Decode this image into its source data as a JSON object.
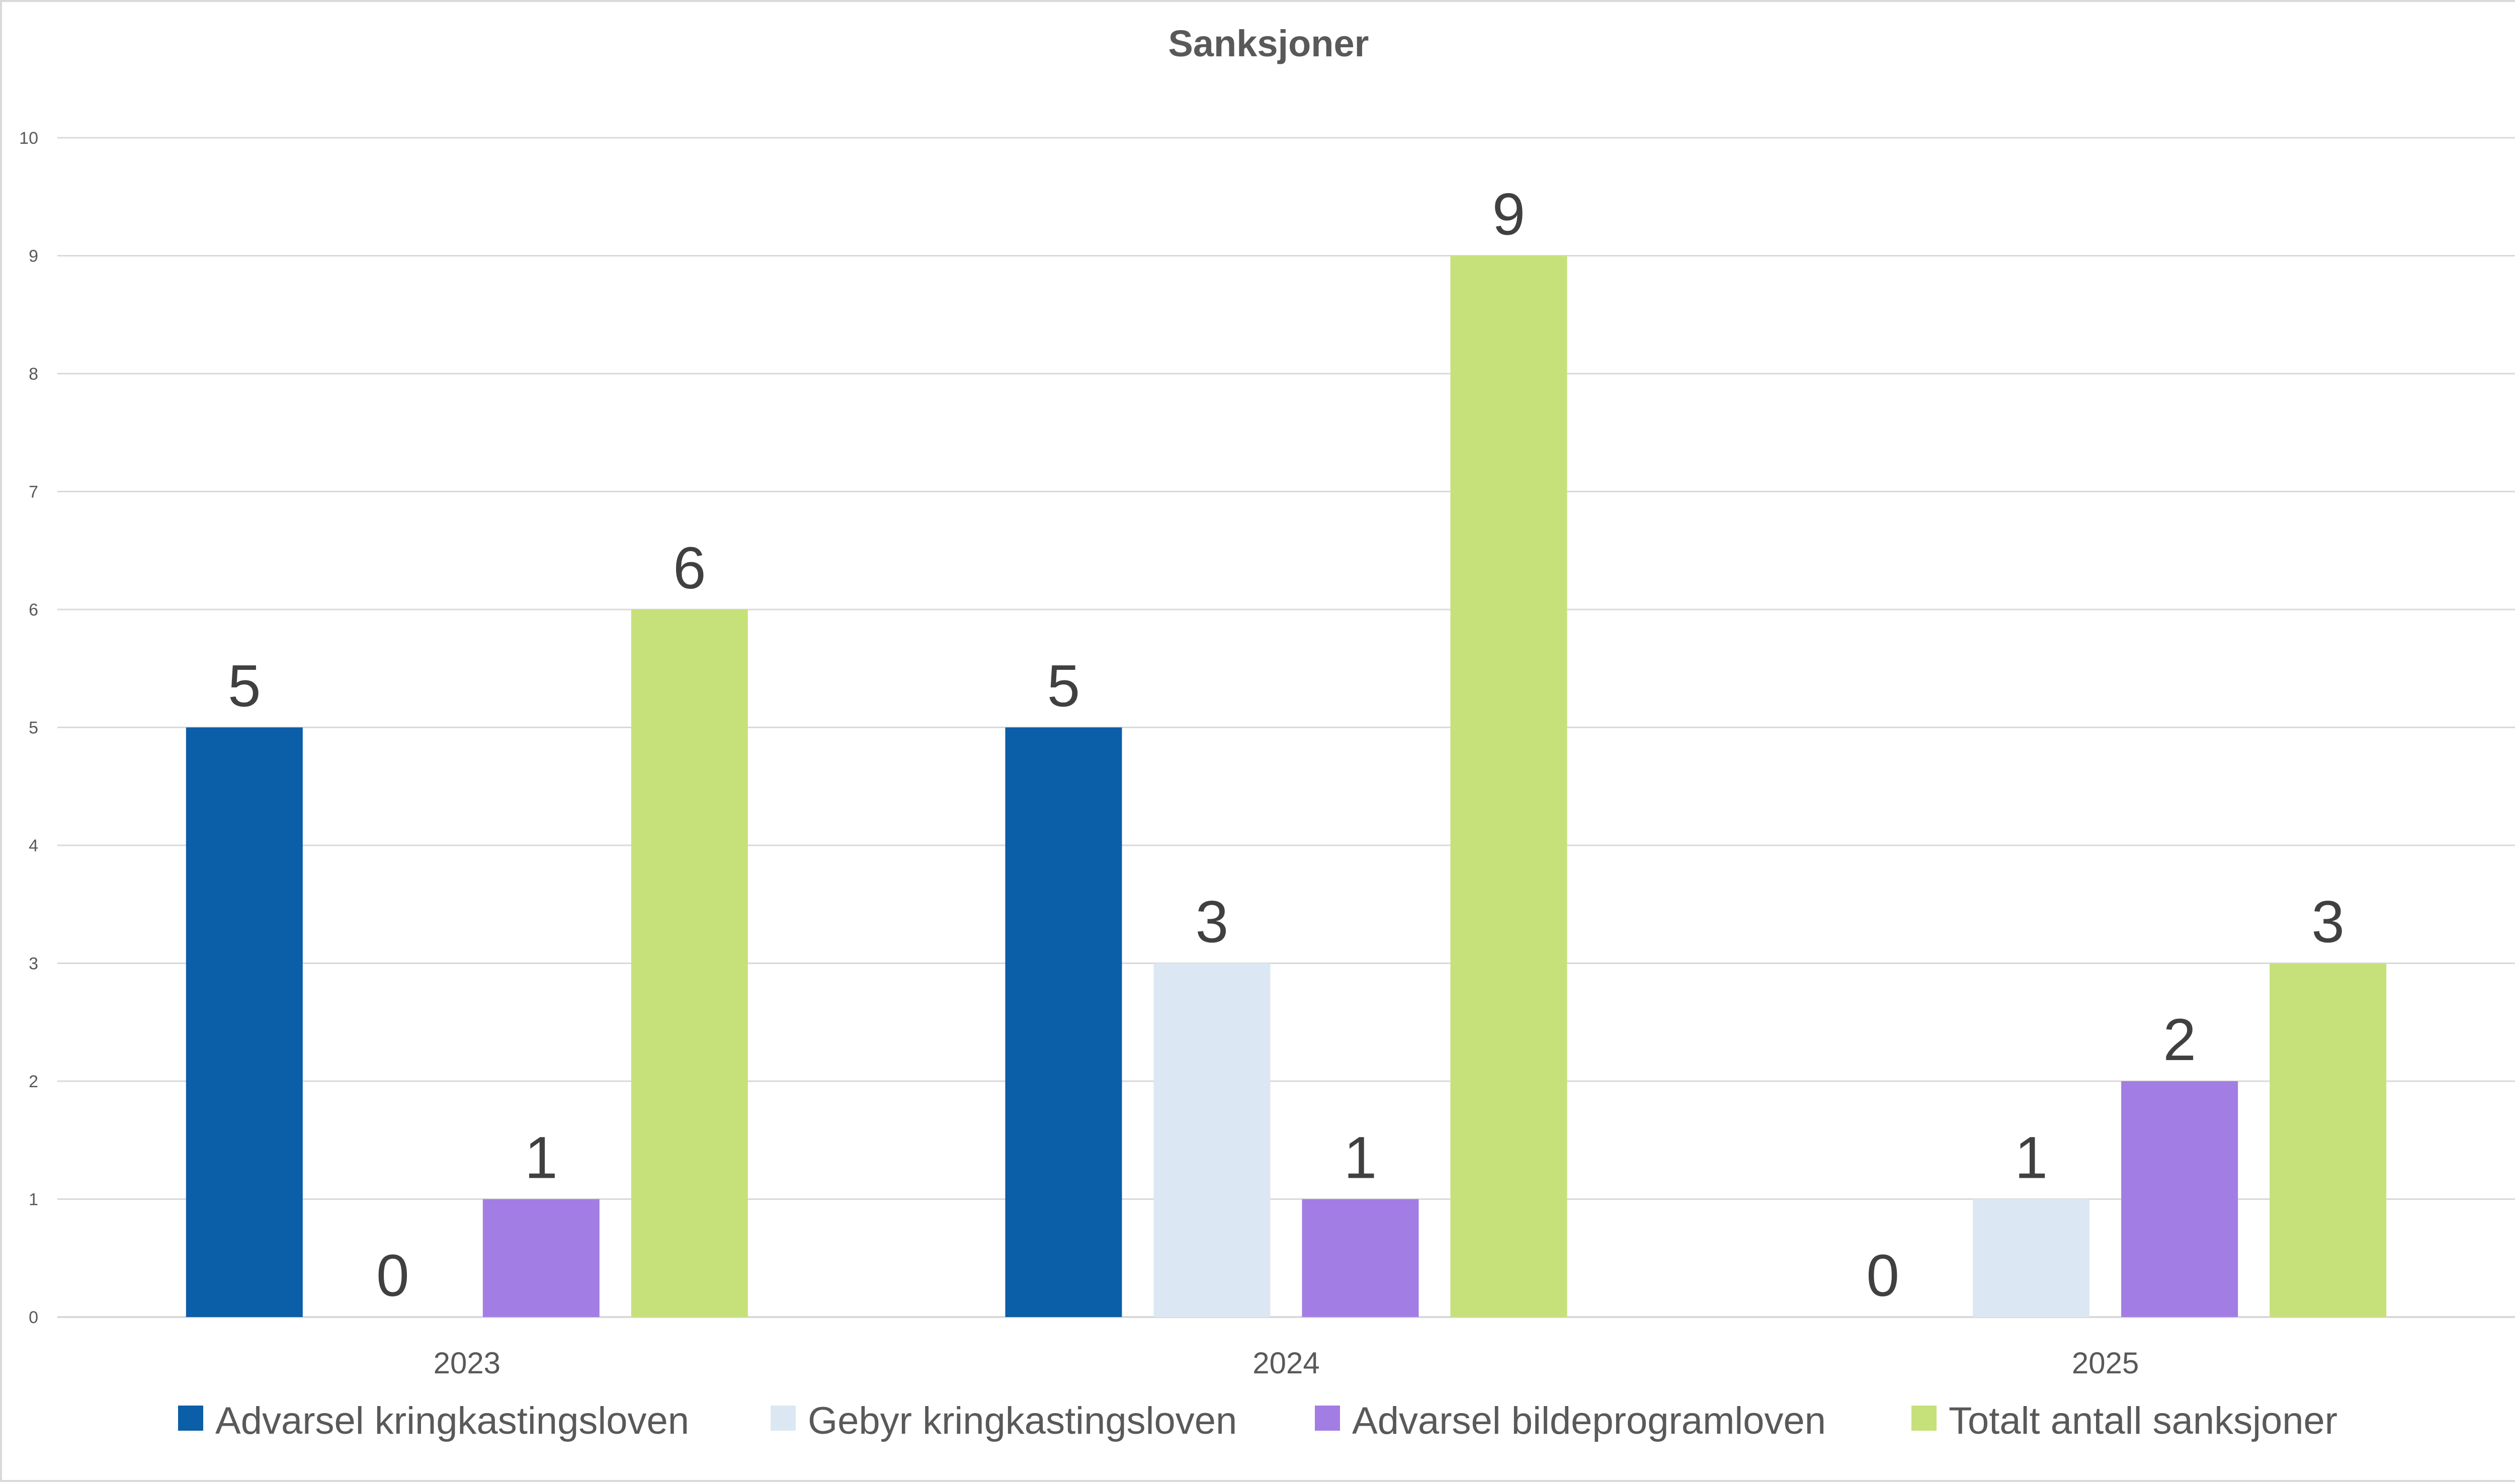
{
  "chart_data": {
    "type": "bar",
    "title": "Sanksjoner",
    "xlabel": "",
    "ylabel": "",
    "categories": [
      "2023",
      "2024",
      "2025"
    ],
    "ylim": [
      0,
      10
    ],
    "yticks": [
      0,
      1,
      2,
      3,
      4,
      5,
      6,
      7,
      8,
      9,
      10
    ],
    "grid": true,
    "legend_position": "bottom",
    "data_labels": true,
    "series": [
      {
        "name": "Advarsel kringkastingsloven",
        "color": "#0b5ea8",
        "values": [
          5,
          5,
          0
        ],
        "labels": [
          "5",
          "5",
          "0"
        ]
      },
      {
        "name": "Gebyr kringkastingsloven",
        "color": "#dbe8f4",
        "values": [
          0,
          3,
          1
        ],
        "labels": [
          "0",
          "3",
          "1"
        ]
      },
      {
        "name": "Advarsel bildeprogramloven",
        "color": "#a27de3",
        "values": [
          1,
          1,
          2
        ],
        "labels": [
          "1",
          "1",
          "2"
        ]
      },
      {
        "name": "Totalt antall sanksjoner",
        "color": "#c6e17a",
        "values": [
          6,
          9,
          3
        ],
        "labels": [
          "6",
          "9",
          "3"
        ]
      }
    ]
  }
}
